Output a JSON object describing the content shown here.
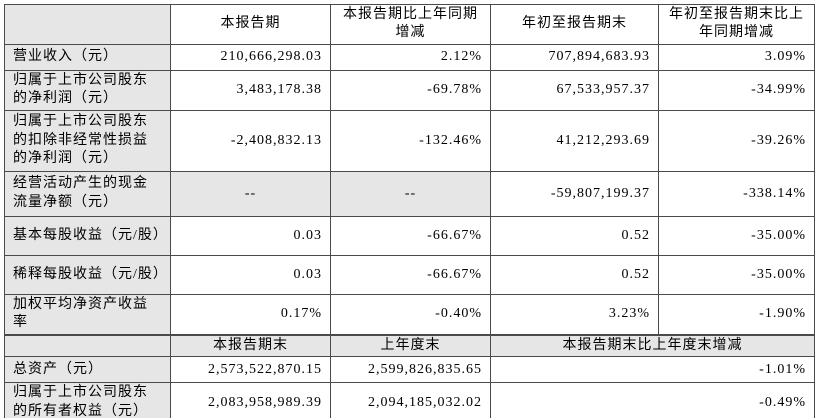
{
  "table": {
    "colors": {
      "shaded_cell": "#e6e6e6",
      "border": "#4a4a4a",
      "text": "#000000",
      "background": "#ffffff"
    },
    "header_row_1": {
      "corner": "",
      "cols": [
        "本报告期",
        "本报告期比上年同期增减",
        "年初至报告期末",
        "年初至报告期末比上年同期增减"
      ]
    },
    "rows_section_1": [
      {
        "label": "营业收入（元）",
        "values": [
          "210,666,298.03",
          "2.12%",
          "707,894,683.93",
          "3.09%"
        ]
      },
      {
        "label": "归属于上市公司股东的净利润（元）",
        "values": [
          "3,483,178.38",
          "-69.78%",
          "67,533,957.37",
          "-34.99%"
        ]
      },
      {
        "label": "归属于上市公司股东的扣除非经常性损益的净利润（元）",
        "values": [
          "-2,408,832.13",
          "-132.46%",
          "41,212,293.69",
          "-39.26%"
        ]
      },
      {
        "label": "经营活动产生的现金流量净额（元）",
        "values": [
          "--",
          "--",
          "-59,807,199.37",
          "-338.14%"
        ]
      },
      {
        "label": "基本每股收益（元/股）",
        "values": [
          "0.03",
          "-66.67%",
          "0.52",
          "-35.00%"
        ]
      },
      {
        "label": "稀释每股收益（元/股）",
        "values": [
          "0.03",
          "-66.67%",
          "0.52",
          "-35.00%"
        ]
      },
      {
        "label": "加权平均净资产收益率",
        "values": [
          "0.17%",
          "-0.40%",
          "3.23%",
          "-1.90%"
        ]
      }
    ],
    "header_row_2": {
      "corner": "",
      "cols": [
        "本报告期末",
        "上年度末",
        "本报告期末比上年度末增减"
      ]
    },
    "rows_section_2": [
      {
        "label": "总资产（元）",
        "values": [
          "2,573,522,870.15",
          "2,599,826,835.65",
          "-1.01%"
        ]
      },
      {
        "label": "归属于上市公司股东的所有者权益（元）",
        "values": [
          "2,083,958,989.39",
          "2,094,185,032.02",
          "-0.49%"
        ]
      }
    ]
  }
}
